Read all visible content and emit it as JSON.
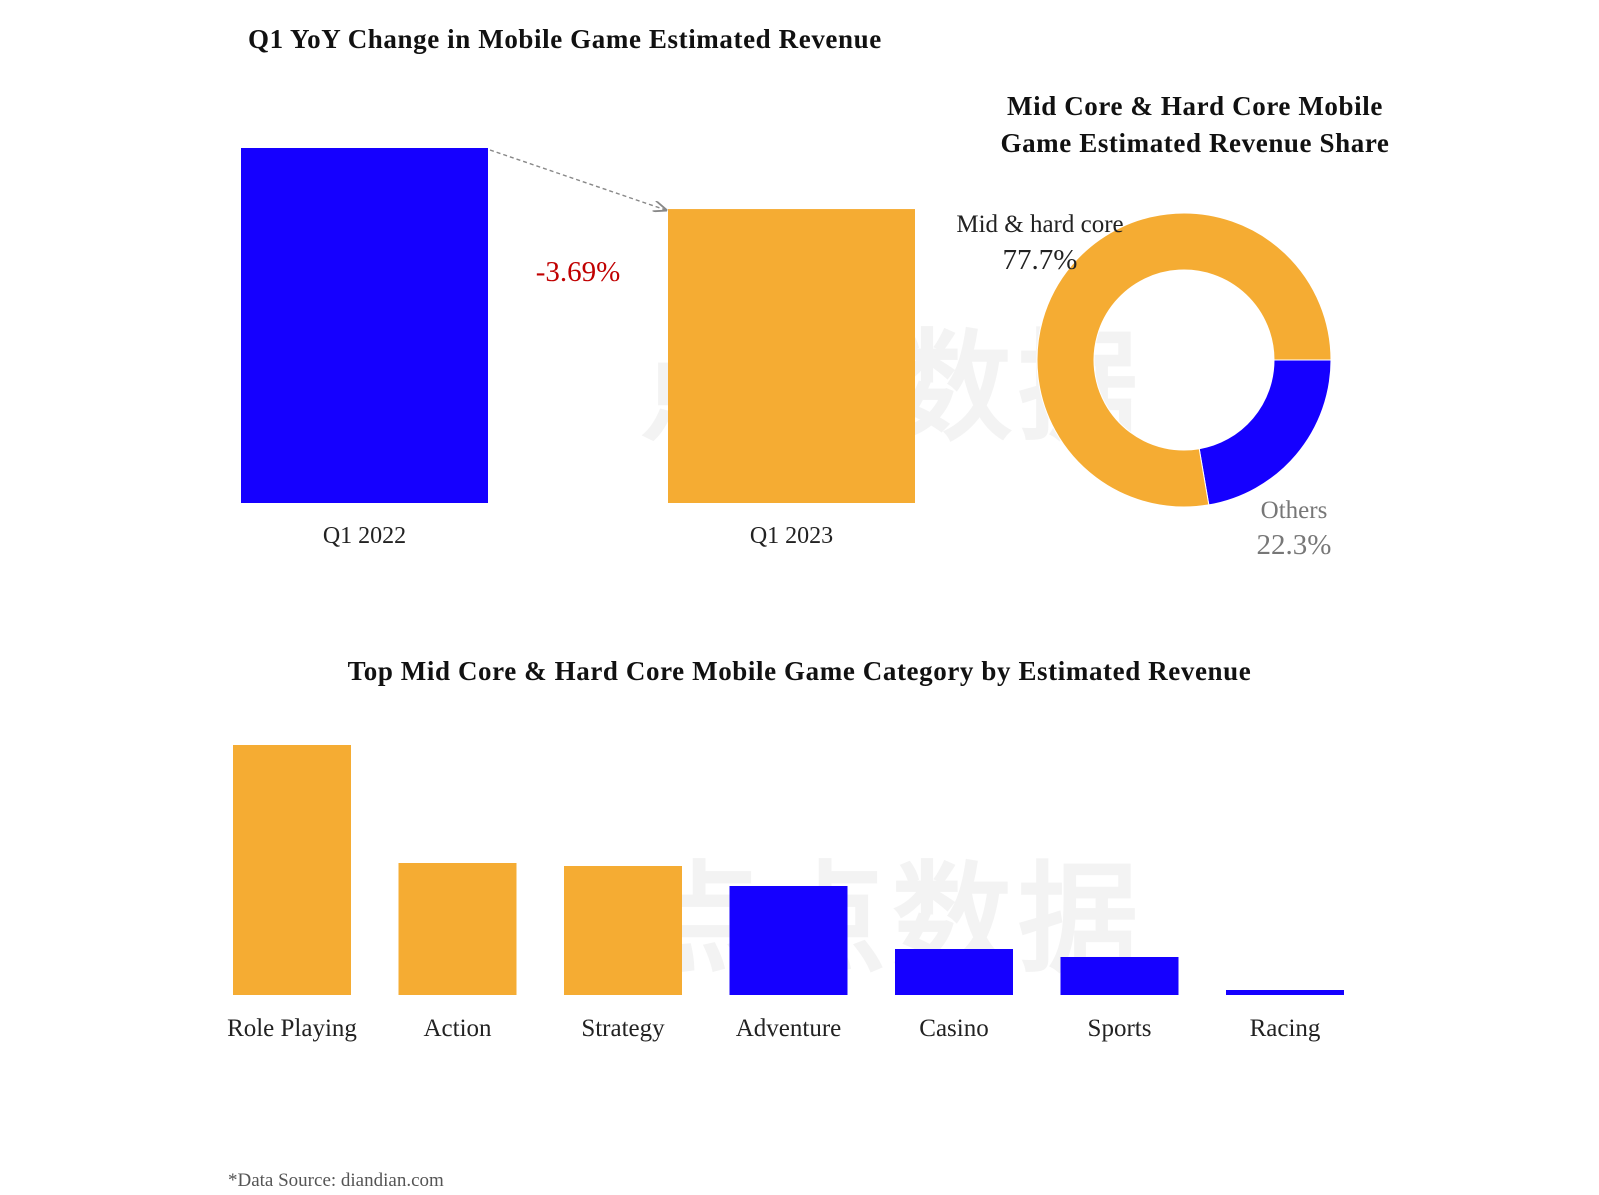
{
  "chart_data": [
    {
      "type": "bar",
      "title": "Q1 YoY Change in Mobile Game Estimated Revenue",
      "categories": [
        "Q1 2022",
        "Q1 2023"
      ],
      "values": [
        100,
        82.8
      ],
      "colors": [
        "#1500ff",
        "#f5ac33"
      ],
      "annotation": "-3.69%",
      "annotation_color": "#c00000",
      "axes_visible": false,
      "grid": false
    },
    {
      "type": "pie",
      "donut": true,
      "title_lines": [
        "Mid Core & Hard Core Mobile",
        "Game Estimated Revenue Share"
      ],
      "slices": [
        {
          "label": "Mid & hard core",
          "value": 77.7,
          "value_label": "77.7%",
          "color": "#f5ac33"
        },
        {
          "label": "Others",
          "value": 22.3,
          "value_label": "22.3%",
          "color": "#1500ff"
        }
      ]
    },
    {
      "type": "bar",
      "title": "Top Mid Core & Hard Core Mobile Game Category by Estimated Revenue",
      "categories": [
        "Role Playing",
        "Action",
        "Strategy",
        "Adventure",
        "Casino",
        "Sports",
        "Racing"
      ],
      "values": [
        100,
        52.8,
        51.6,
        43.6,
        18.4,
        15.2,
        2
      ],
      "colors": [
        "#f5ac33",
        "#f5ac33",
        "#f5ac33",
        "#1500ff",
        "#1500ff",
        "#1500ff",
        "#1500ff"
      ],
      "axes_visible": false,
      "grid": false
    }
  ],
  "watermark": "点点数据",
  "source": "*Data Source: diandian.com"
}
